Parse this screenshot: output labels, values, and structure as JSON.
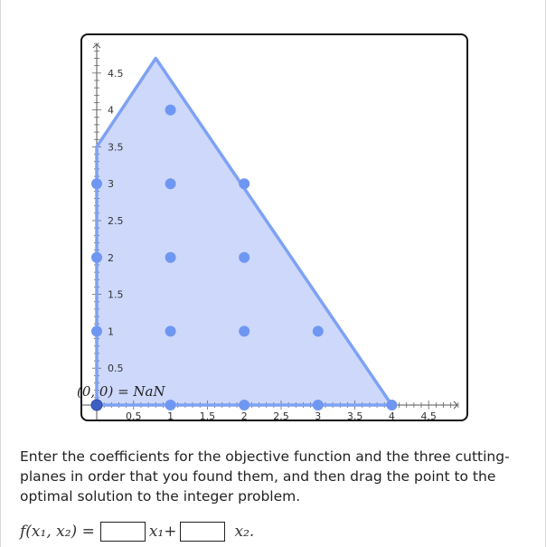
{
  "board": {
    "x_ticks": [
      "0.5",
      "1",
      "1.5",
      "2",
      "2.5",
      "3",
      "3.5",
      "4",
      "4.5"
    ],
    "y_ticks": [
      "0.5",
      "1",
      "1.5",
      "2",
      "2.5",
      "3",
      "3.5",
      "4",
      "4.5"
    ],
    "point_label": "(0, 0) = NaN",
    "colors": {
      "fill": "#cdd8fb",
      "edge": "#7ea2f3",
      "dot": "#6f97f2",
      "drag_point": "#3d5fc4"
    }
  },
  "chart_data": {
    "type": "scatter",
    "title": "",
    "xlabel": "",
    "ylabel": "",
    "xlim": [
      -0.05,
      5.05
    ],
    "ylim": [
      -0.05,
      5.05
    ],
    "feasible_region": [
      [
        0,
        0
      ],
      [
        4,
        0
      ],
      [
        0.8,
        4.7
      ],
      [
        0,
        3.5
      ]
    ],
    "integer_points": [
      [
        0,
        0
      ],
      [
        1,
        0
      ],
      [
        2,
        0
      ],
      [
        3,
        0
      ],
      [
        4,
        0
      ],
      [
        0,
        1
      ],
      [
        1,
        1
      ],
      [
        2,
        1
      ],
      [
        3,
        1
      ],
      [
        0,
        2
      ],
      [
        1,
        2
      ],
      [
        2,
        2
      ],
      [
        0,
        3
      ],
      [
        1,
        3
      ],
      [
        2,
        3
      ],
      [
        1,
        4
      ]
    ],
    "drag_point": [
      0,
      0
    ]
  },
  "instructions": "Enter the coefficients for the objective function and the three cutting-planes in order that you found them, and then drag the point to the optimal solution to the integer problem.",
  "formula": {
    "lhs": "f(x₁, x₂) =",
    "term1_var": "x₁+",
    "term2_var": "x₂.",
    "coef1_value": "",
    "coef2_value": ""
  }
}
